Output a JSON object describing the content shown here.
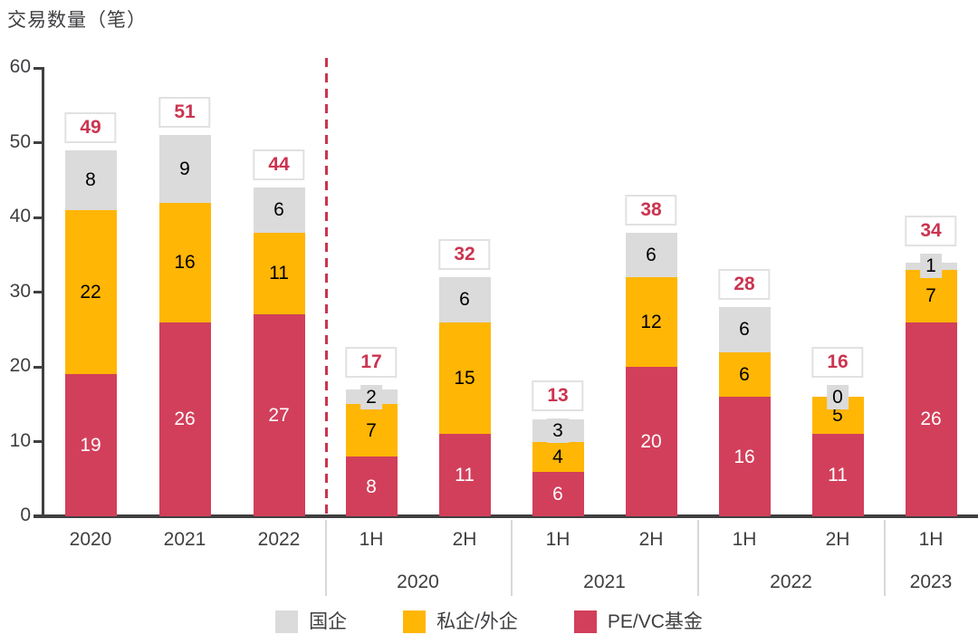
{
  "chart_data": {
    "type": "bar",
    "subtype": "stacked",
    "title": "交易数量（笔）",
    "ylim": [
      0,
      60
    ],
    "yticks": [
      0,
      10,
      20,
      30,
      40,
      50,
      60
    ],
    "grid": false,
    "legend_position": "bottom",
    "series_bottom_to_top": [
      {
        "name": "PE/VC基金",
        "color": "#d23f5b",
        "label_color": "#ffffff"
      },
      {
        "name": "私企/外企",
        "color": "#ffb605",
        "label_color": "#000000"
      },
      {
        "name": "国企",
        "color": "#dbdbdb",
        "label_color": "#000000"
      }
    ],
    "bars": [
      {
        "section": "annual",
        "label": "2020",
        "values": [
          19,
          22,
          8
        ],
        "total": 49
      },
      {
        "section": "annual",
        "label": "2021",
        "values": [
          26,
          16,
          9
        ],
        "total": 51
      },
      {
        "section": "annual",
        "label": "2022",
        "values": [
          27,
          11,
          6
        ],
        "total": 44
      },
      {
        "section": "half",
        "group": "2020",
        "label": "1H",
        "values": [
          8,
          7,
          2
        ],
        "total": 17
      },
      {
        "section": "half",
        "group": "2020",
        "label": "2H",
        "values": [
          11,
          15,
          6
        ],
        "total": 32
      },
      {
        "section": "half",
        "group": "2021",
        "label": "1H",
        "values": [
          6,
          4,
          3
        ],
        "total": 13
      },
      {
        "section": "half",
        "group": "2021",
        "label": "2H",
        "values": [
          20,
          12,
          6
        ],
        "total": 38
      },
      {
        "section": "half",
        "group": "2022",
        "label": "1H",
        "values": [
          16,
          6,
          6
        ],
        "total": 28
      },
      {
        "section": "half",
        "group": "2022",
        "label": "2H",
        "values": [
          11,
          5,
          0
        ],
        "total": 16
      },
      {
        "section": "half",
        "group": "2023",
        "label": "1H",
        "values": [
          26,
          7,
          1
        ],
        "total": 34
      }
    ],
    "legend": [
      {
        "label": "国企",
        "color": "#dbdbdb"
      },
      {
        "label": "私企/外企",
        "color": "#ffb605"
      },
      {
        "label": "PE/VC基金",
        "color": "#d23f5b"
      }
    ],
    "annotations": {
      "divider_between_sections": "dashed-red-vertical-line"
    },
    "colors": {
      "accent_red": "#cb3450",
      "axis": "#404040",
      "text": "#3f3f42",
      "total_box_border": "#e1e1e1",
      "group_separator": "#d8d8d8"
    }
  }
}
